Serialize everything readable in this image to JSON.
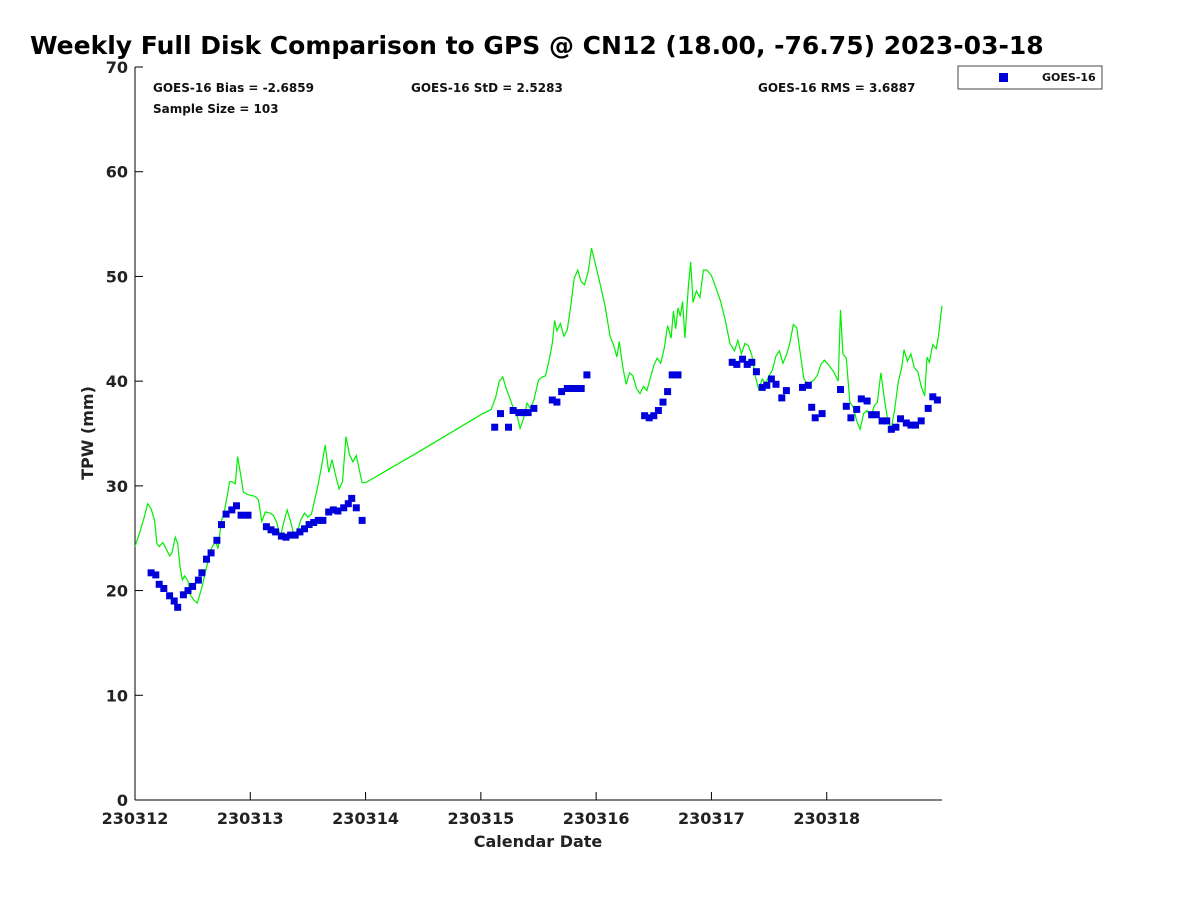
{
  "chart_data": {
    "type": "scatter",
    "title": "Weekly Full Disk Comparison to GPS @ CN12 (18.00, -76.75) 2023-03-18",
    "xlabel": "Calendar Date",
    "ylabel": "TPW (mm)",
    "xlim": [
      0,
      7
    ],
    "ylim": [
      0,
      70
    ],
    "x_tick_values": [
      0,
      1,
      2,
      3,
      4,
      5,
      6
    ],
    "x_tick_labels": [
      "230312",
      "230313",
      "230314",
      "230315",
      "230316",
      "230317",
      "230318"
    ],
    "y_ticks": [
      0,
      10,
      20,
      30,
      40,
      50,
      60,
      70
    ],
    "stats": {
      "bias": "GOES-16 Bias = -2.6859",
      "std": "GOES-16 StD = 2.5283",
      "rms": "GOES-16 RMS = 3.6887",
      "sample": "Sample Size = 103"
    },
    "legend": {
      "position": "top-right",
      "entries": [
        "GOES-16"
      ]
    },
    "series": [
      {
        "name": "GOES-16",
        "marker": "square",
        "color": "#0000dd",
        "points": [
          [
            0.14,
            21.7
          ],
          [
            0.18,
            21.5
          ],
          [
            0.21,
            20.6
          ],
          [
            0.25,
            20.2
          ],
          [
            0.3,
            19.5
          ],
          [
            0.34,
            19.0
          ],
          [
            0.37,
            18.4
          ],
          [
            0.42,
            19.6
          ],
          [
            0.46,
            20.0
          ],
          [
            0.5,
            20.4
          ],
          [
            0.55,
            21.0
          ],
          [
            0.58,
            21.7
          ],
          [
            0.62,
            23.0
          ],
          [
            0.66,
            23.6
          ],
          [
            0.71,
            24.8
          ],
          [
            0.75,
            26.3
          ],
          [
            0.79,
            27.3
          ],
          [
            0.84,
            27.7
          ],
          [
            0.88,
            28.1
          ],
          [
            0.92,
            27.2
          ],
          [
            0.98,
            27.2
          ],
          [
            1.14,
            26.1
          ],
          [
            1.18,
            25.8
          ],
          [
            1.22,
            25.6
          ],
          [
            1.27,
            25.2
          ],
          [
            1.31,
            25.1
          ],
          [
            1.35,
            25.3
          ],
          [
            1.39,
            25.3
          ],
          [
            1.43,
            25.6
          ],
          [
            1.47,
            25.9
          ],
          [
            1.51,
            26.3
          ],
          [
            1.55,
            26.5
          ],
          [
            1.59,
            26.7
          ],
          [
            1.63,
            26.7
          ],
          [
            1.68,
            27.5
          ],
          [
            1.72,
            27.7
          ],
          [
            1.76,
            27.6
          ],
          [
            1.81,
            27.9
          ],
          [
            1.85,
            28.3
          ],
          [
            1.88,
            28.8
          ],
          [
            1.92,
            27.9
          ],
          [
            1.97,
            26.7
          ],
          [
            3.12,
            35.6
          ],
          [
            3.17,
            36.9
          ],
          [
            3.24,
            35.6
          ],
          [
            3.28,
            37.2
          ],
          [
            3.33,
            37.0
          ],
          [
            3.37,
            37.0
          ],
          [
            3.41,
            37.0
          ],
          [
            3.46,
            37.4
          ],
          [
            3.62,
            38.2
          ],
          [
            3.66,
            38.0
          ],
          [
            3.7,
            39.0
          ],
          [
            3.75,
            39.3
          ],
          [
            3.79,
            39.3
          ],
          [
            3.83,
            39.3
          ],
          [
            3.87,
            39.3
          ],
          [
            3.92,
            40.6
          ],
          [
            4.42,
            36.7
          ],
          [
            4.46,
            36.5
          ],
          [
            4.5,
            36.7
          ],
          [
            4.54,
            37.2
          ],
          [
            4.58,
            38.0
          ],
          [
            4.62,
            39.0
          ],
          [
            4.66,
            40.6
          ],
          [
            4.71,
            40.6
          ],
          [
            5.18,
            41.8
          ],
          [
            5.22,
            41.6
          ],
          [
            5.27,
            42.1
          ],
          [
            5.31,
            41.6
          ],
          [
            5.35,
            41.8
          ],
          [
            5.39,
            40.9
          ],
          [
            5.44,
            39.4
          ],
          [
            5.48,
            39.6
          ],
          [
            5.52,
            40.2
          ],
          [
            5.56,
            39.7
          ],
          [
            5.61,
            38.4
          ],
          [
            5.65,
            39.1
          ],
          [
            5.79,
            39.4
          ],
          [
            5.84,
            39.6
          ],
          [
            5.87,
            37.5
          ],
          [
            5.9,
            36.5
          ],
          [
            5.96,
            36.9
          ],
          [
            6.12,
            39.2
          ],
          [
            6.17,
            37.6
          ],
          [
            6.21,
            36.5
          ],
          [
            6.26,
            37.3
          ],
          [
            6.3,
            38.3
          ],
          [
            6.35,
            38.1
          ],
          [
            6.39,
            36.8
          ],
          [
            6.43,
            36.8
          ],
          [
            6.48,
            36.2
          ],
          [
            6.52,
            36.2
          ],
          [
            6.56,
            35.4
          ],
          [
            6.6,
            35.6
          ],
          [
            6.64,
            36.4
          ],
          [
            6.69,
            36.0
          ],
          [
            6.73,
            35.8
          ],
          [
            6.77,
            35.8
          ],
          [
            6.82,
            36.2
          ],
          [
            6.88,
            37.4
          ],
          [
            6.92,
            38.5
          ],
          [
            6.96,
            38.2
          ]
        ]
      },
      {
        "name": "GPS",
        "style": "line",
        "color": "#00ee00",
        "points": [
          [
            0.0,
            24.2
          ],
          [
            0.04,
            25.5
          ],
          [
            0.08,
            27.0
          ],
          [
            0.11,
            28.3
          ],
          [
            0.14,
            27.8
          ],
          [
            0.17,
            26.7
          ],
          [
            0.19,
            24.5
          ],
          [
            0.21,
            24.2
          ],
          [
            0.24,
            24.6
          ],
          [
            0.27,
            24.0
          ],
          [
            0.3,
            23.3
          ],
          [
            0.32,
            23.6
          ],
          [
            0.35,
            25.1
          ],
          [
            0.37,
            24.5
          ],
          [
            0.39,
            22.3
          ],
          [
            0.41,
            21.0
          ],
          [
            0.43,
            21.4
          ],
          [
            0.46,
            20.9
          ],
          [
            0.48,
            19.6
          ],
          [
            0.51,
            19.1
          ],
          [
            0.54,
            18.8
          ],
          [
            0.58,
            20.3
          ],
          [
            0.62,
            22.2
          ],
          [
            0.66,
            24.0
          ],
          [
            0.7,
            24.7
          ],
          [
            0.72,
            24.0
          ],
          [
            0.75,
            26.7
          ],
          [
            0.77,
            27.3
          ],
          [
            0.8,
            29.0
          ],
          [
            0.82,
            30.4
          ],
          [
            0.84,
            30.4
          ],
          [
            0.87,
            30.2
          ],
          [
            0.89,
            32.8
          ],
          [
            0.91,
            31.5
          ],
          [
            0.94,
            29.4
          ],
          [
            0.97,
            29.2
          ],
          [
            1.0,
            29.1
          ],
          [
            1.04,
            29.0
          ],
          [
            1.07,
            28.7
          ],
          [
            1.1,
            26.6
          ],
          [
            1.13,
            27.5
          ],
          [
            1.17,
            27.4
          ],
          [
            1.2,
            27.2
          ],
          [
            1.23,
            26.5
          ],
          [
            1.26,
            25.1
          ],
          [
            1.29,
            26.5
          ],
          [
            1.32,
            27.7
          ],
          [
            1.35,
            26.6
          ],
          [
            1.38,
            25.2
          ],
          [
            1.41,
            25.7
          ],
          [
            1.44,
            26.8
          ],
          [
            1.47,
            27.4
          ],
          [
            1.5,
            27.0
          ],
          [
            1.53,
            27.3
          ],
          [
            1.56,
            28.7
          ],
          [
            1.59,
            30.2
          ],
          [
            1.62,
            32.0
          ],
          [
            1.65,
            33.9
          ],
          [
            1.68,
            31.3
          ],
          [
            1.71,
            32.5
          ],
          [
            1.74,
            31.0
          ],
          [
            1.77,
            29.7
          ],
          [
            1.8,
            30.4
          ],
          [
            1.83,
            34.7
          ],
          [
            1.86,
            33.0
          ],
          [
            1.89,
            32.3
          ],
          [
            1.92,
            32.9
          ],
          [
            1.94,
            31.8
          ],
          [
            1.97,
            30.3
          ],
          [
            2.0,
            30.3
          ],
          [
            2.5,
            33.5
          ],
          [
            3.0,
            36.8
          ],
          [
            3.09,
            37.3
          ],
          [
            3.13,
            38.5
          ],
          [
            3.16,
            40.0
          ],
          [
            3.19,
            40.4
          ],
          [
            3.22,
            39.3
          ],
          [
            3.25,
            38.4
          ],
          [
            3.28,
            37.5
          ],
          [
            3.31,
            36.9
          ],
          [
            3.34,
            35.5
          ],
          [
            3.37,
            36.4
          ],
          [
            3.4,
            37.9
          ],
          [
            3.43,
            37.4
          ],
          [
            3.46,
            38.2
          ],
          [
            3.5,
            40.1
          ],
          [
            3.53,
            40.4
          ],
          [
            3.56,
            40.5
          ],
          [
            3.59,
            41.9
          ],
          [
            3.62,
            43.6
          ],
          [
            3.64,
            45.8
          ],
          [
            3.66,
            44.8
          ],
          [
            3.69,
            45.5
          ],
          [
            3.72,
            44.3
          ],
          [
            3.75,
            44.9
          ],
          [
            3.78,
            47.2
          ],
          [
            3.81,
            49.8
          ],
          [
            3.84,
            50.6
          ],
          [
            3.87,
            49.5
          ],
          [
            3.9,
            49.2
          ],
          [
            3.93,
            50.4
          ],
          [
            3.96,
            52.7
          ],
          [
            4.0,
            50.9
          ],
          [
            4.04,
            49.0
          ],
          [
            4.08,
            47.0
          ],
          [
            4.12,
            44.3
          ],
          [
            4.15,
            43.5
          ],
          [
            4.18,
            42.3
          ],
          [
            4.2,
            43.8
          ],
          [
            4.23,
            41.4
          ],
          [
            4.26,
            39.7
          ],
          [
            4.29,
            40.8
          ],
          [
            4.32,
            40.5
          ],
          [
            4.35,
            39.3
          ],
          [
            4.38,
            38.8
          ],
          [
            4.41,
            39.5
          ],
          [
            4.44,
            39.1
          ],
          [
            4.47,
            40.3
          ],
          [
            4.5,
            41.5
          ],
          [
            4.53,
            42.2
          ],
          [
            4.56,
            41.7
          ],
          [
            4.59,
            43.1
          ],
          [
            4.62,
            45.3
          ],
          [
            4.65,
            44.1
          ],
          [
            4.67,
            46.7
          ],
          [
            4.69,
            45.0
          ],
          [
            4.71,
            47.0
          ],
          [
            4.73,
            46.2
          ],
          [
            4.75,
            47.6
          ],
          [
            4.77,
            44.1
          ],
          [
            4.8,
            49.1
          ],
          [
            4.82,
            51.4
          ],
          [
            4.84,
            47.5
          ],
          [
            4.87,
            48.6
          ],
          [
            4.9,
            48.0
          ],
          [
            4.93,
            50.6
          ],
          [
            4.96,
            50.6
          ],
          [
            5.0,
            50.1
          ],
          [
            5.04,
            48.9
          ],
          [
            5.08,
            47.6
          ],
          [
            5.12,
            45.8
          ],
          [
            5.16,
            43.6
          ],
          [
            5.2,
            42.9
          ],
          [
            5.23,
            43.9
          ],
          [
            5.26,
            42.6
          ],
          [
            5.29,
            43.6
          ],
          [
            5.32,
            43.4
          ],
          [
            5.35,
            42.5
          ],
          [
            5.38,
            40.5
          ],
          [
            5.41,
            39.2
          ],
          [
            5.44,
            40.2
          ],
          [
            5.47,
            39.8
          ],
          [
            5.5,
            40.5
          ],
          [
            5.53,
            41.1
          ],
          [
            5.56,
            42.4
          ],
          [
            5.59,
            42.9
          ],
          [
            5.62,
            41.7
          ],
          [
            5.65,
            42.5
          ],
          [
            5.68,
            43.6
          ],
          [
            5.71,
            45.4
          ],
          [
            5.74,
            45.1
          ],
          [
            5.77,
            42.7
          ],
          [
            5.8,
            40.3
          ],
          [
            5.83,
            39.7
          ],
          [
            5.86,
            39.9
          ],
          [
            5.89,
            40.1
          ],
          [
            5.92,
            40.6
          ],
          [
            5.95,
            41.6
          ],
          [
            5.98,
            42.0
          ],
          [
            6.02,
            41.5
          ],
          [
            6.06,
            40.9
          ],
          [
            6.1,
            40.0
          ],
          [
            6.12,
            46.8
          ],
          [
            6.14,
            42.6
          ],
          [
            6.17,
            42.2
          ],
          [
            6.2,
            38.0
          ],
          [
            6.23,
            37.5
          ],
          [
            6.26,
            36.2
          ],
          [
            6.29,
            35.4
          ],
          [
            6.32,
            36.9
          ],
          [
            6.35,
            37.2
          ],
          [
            6.38,
            36.5
          ],
          [
            6.41,
            37.6
          ],
          [
            6.44,
            38.0
          ],
          [
            6.47,
            40.8
          ],
          [
            6.5,
            38.3
          ],
          [
            6.53,
            36.2
          ],
          [
            6.56,
            35.5
          ],
          [
            6.59,
            37.3
          ],
          [
            6.62,
            39.9
          ],
          [
            6.65,
            41.3
          ],
          [
            6.67,
            43.0
          ],
          [
            6.7,
            41.9
          ],
          [
            6.73,
            42.6
          ],
          [
            6.76,
            41.3
          ],
          [
            6.79,
            40.9
          ],
          [
            6.82,
            39.5
          ],
          [
            6.85,
            38.6
          ],
          [
            6.87,
            42.3
          ],
          [
            6.89,
            41.8
          ],
          [
            6.92,
            43.5
          ],
          [
            6.95,
            43.1
          ],
          [
            6.97,
            44.3
          ],
          [
            6.99,
            46.3
          ],
          [
            7.0,
            47.2
          ]
        ]
      }
    ]
  }
}
